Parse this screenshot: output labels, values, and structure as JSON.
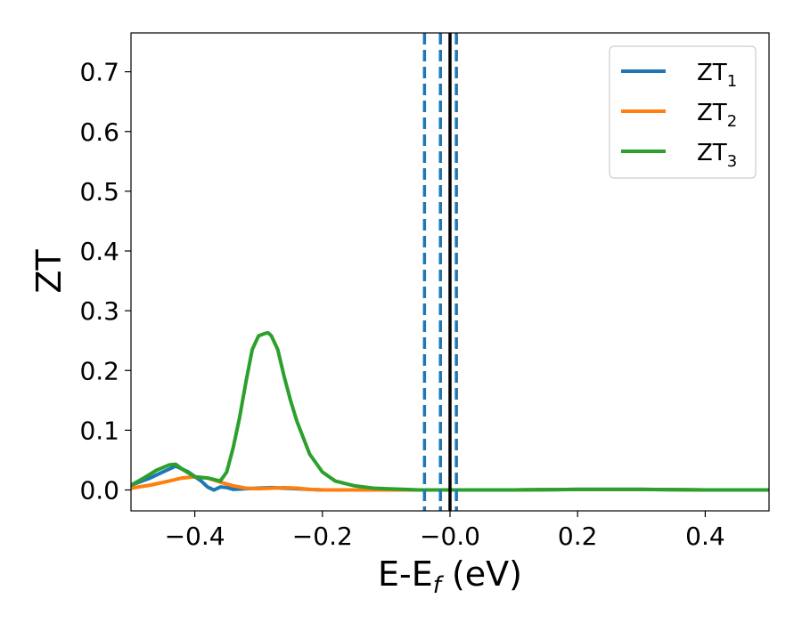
{
  "chart_data": {
    "type": "line",
    "xlabel": {
      "main": "E-E",
      "sub": "f",
      "suffix": " (eV)"
    },
    "ylabel": "ZT",
    "xlim": [
      -0.5,
      0.5
    ],
    "ylim": [
      -0.035,
      0.765
    ],
    "x_ticks": [
      -0.4,
      -0.2,
      0.0,
      0.2,
      0.4
    ],
    "x_tick_labels": [
      "−0.4",
      "−0.2",
      "−0.0",
      "0.2",
      "0.4"
    ],
    "y_ticks": [
      0.0,
      0.1,
      0.2,
      0.3,
      0.4,
      0.5,
      0.6,
      0.7
    ],
    "y_tick_labels": [
      "0.0",
      "0.1",
      "0.2",
      "0.3",
      "0.4",
      "0.5",
      "0.6",
      "0.7"
    ],
    "grid": false,
    "legend_position": "top-right",
    "series": [
      {
        "name": "ZT",
        "name_sub": "1",
        "color": "#1f77b4",
        "x": [
          -0.5,
          -0.47,
          -0.45,
          -0.43,
          -0.41,
          -0.39,
          -0.38,
          -0.37,
          -0.36,
          -0.35,
          -0.34,
          -0.32,
          -0.3,
          -0.28,
          -0.26,
          -0.24,
          -0.22,
          -0.2,
          -0.15,
          -0.1,
          -0.05,
          0.0,
          0.1,
          0.2,
          0.3,
          0.4,
          0.5
        ],
        "y": [
          0.008,
          0.02,
          0.03,
          0.04,
          0.03,
          0.015,
          0.005,
          0.0,
          0.005,
          0.004,
          0.001,
          0.002,
          0.003,
          0.004,
          0.003,
          0.002,
          0.001,
          0.0,
          0.0,
          0.0,
          0.0,
          0.0,
          0.0,
          0.001,
          0.001,
          0.0,
          0.0
        ]
      },
      {
        "name": "ZT",
        "name_sub": "2",
        "color": "#ff7f0e",
        "x": [
          -0.5,
          -0.47,
          -0.44,
          -0.42,
          -0.4,
          -0.38,
          -0.36,
          -0.34,
          -0.32,
          -0.3,
          -0.28,
          -0.26,
          -0.24,
          -0.22,
          -0.2,
          -0.15,
          -0.1,
          -0.05,
          0.0,
          0.1,
          0.2,
          0.3,
          0.4,
          0.5
        ],
        "y": [
          0.003,
          0.008,
          0.015,
          0.02,
          0.022,
          0.02,
          0.013,
          0.007,
          0.003,
          0.002,
          0.003,
          0.004,
          0.003,
          0.001,
          0.0,
          0.0,
          0.0,
          0.0,
          0.0,
          0.0,
          0.001,
          0.001,
          0.0,
          0.0
        ]
      },
      {
        "name": "ZT",
        "name_sub": "3",
        "color": "#2ca02c",
        "x": [
          -0.5,
          -0.48,
          -0.46,
          -0.44,
          -0.43,
          -0.42,
          -0.4,
          -0.38,
          -0.36,
          -0.35,
          -0.34,
          -0.33,
          -0.32,
          -0.31,
          -0.3,
          -0.29,
          -0.285,
          -0.28,
          -0.27,
          -0.26,
          -0.25,
          -0.24,
          -0.22,
          -0.2,
          -0.18,
          -0.15,
          -0.12,
          -0.1,
          -0.07,
          -0.05,
          0.0,
          0.05,
          0.1,
          0.2,
          0.3,
          0.4,
          0.5
        ],
        "y": [
          0.008,
          0.02,
          0.033,
          0.042,
          0.043,
          0.035,
          0.022,
          0.02,
          0.015,
          0.03,
          0.07,
          0.12,
          0.18,
          0.235,
          0.258,
          0.262,
          0.263,
          0.258,
          0.235,
          0.19,
          0.15,
          0.115,
          0.06,
          0.03,
          0.015,
          0.007,
          0.003,
          0.002,
          0.001,
          0.0,
          0.0,
          0.0,
          0.0,
          0.001,
          0.001,
          0.0,
          0.0
        ]
      }
    ],
    "vertical_lines": [
      {
        "x": 0.0,
        "color": "#000000",
        "style": "solid"
      },
      {
        "x": -0.04,
        "color": "#1f77b4",
        "style": "dashed"
      },
      {
        "x": -0.015,
        "color": "#1f77b4",
        "style": "dashed"
      },
      {
        "x": 0.01,
        "color": "#1f77b4",
        "style": "dashed"
      }
    ]
  }
}
